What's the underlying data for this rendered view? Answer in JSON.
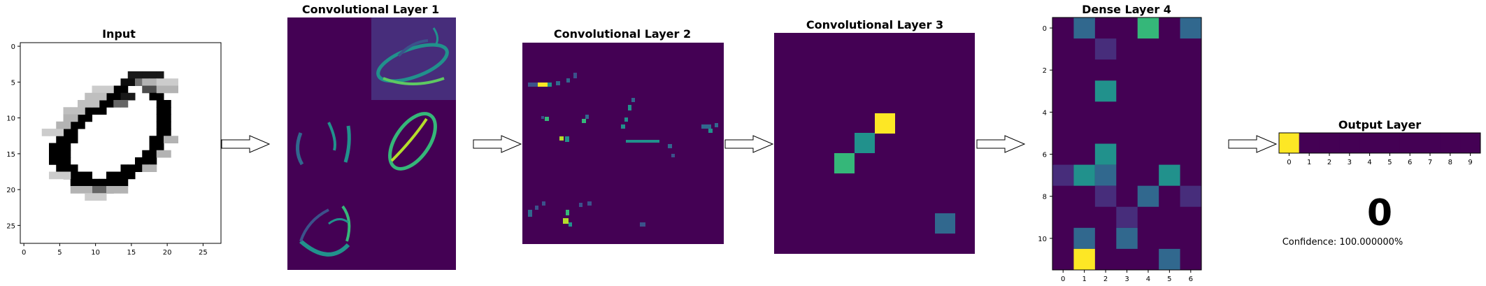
{
  "colors": {
    "purple": "#440154",
    "blue": "#31688e",
    "teal": "#21918c",
    "green": "#35b779",
    "yellow": "#fde725",
    "cool_bg": "#472d7b",
    "arrow_fill": "#ffffff",
    "arrow_stroke": "#000000"
  },
  "panels": {
    "input": {
      "title": "Input"
    },
    "conv1": {
      "title": "Convolutional Layer 1"
    },
    "conv2": {
      "title": "Convolutional Layer 2"
    },
    "conv3": {
      "title": "Convolutional Layer 3"
    },
    "dense4": {
      "title": "Dense Layer 4"
    },
    "output": {
      "title": "Output Layer",
      "prediction": "0",
      "confidence": "Confidence: 100.000000%"
    }
  },
  "chart_data": [
    {
      "type": "heatmap",
      "title": "Input",
      "xlim": [
        -0.5,
        27.5
      ],
      "ylim": [
        27.5,
        -0.5
      ],
      "xticks": [
        "0",
        "5",
        "10",
        "15",
        "20",
        "25"
      ],
      "yticks": [
        "0",
        "5",
        "10",
        "15",
        "20",
        "25"
      ],
      "colormap": "gray_r",
      "description_values": "28x28 grayscale digit image of a handwritten '0'"
    },
    {
      "type": "heatmap",
      "title": "Dense Layer 4",
      "xlim": [
        -0.5,
        6.5
      ],
      "ylim": [
        11.5,
        -0.5
      ],
      "xticks": [
        "0",
        "1",
        "2",
        "3",
        "4",
        "5",
        "6"
      ],
      "yticks": [
        "0",
        "2",
        "4",
        "6",
        "8",
        "10"
      ],
      "colormap": "viridis",
      "cells": [
        {
          "row": 0,
          "col": 1,
          "level": "blue"
        },
        {
          "row": 0,
          "col": 4,
          "level": "green"
        },
        {
          "row": 0,
          "col": 6,
          "level": "blue"
        },
        {
          "row": 1,
          "col": 2,
          "level": "cool_bg"
        },
        {
          "row": 3,
          "col": 2,
          "level": "teal"
        },
        {
          "row": 6,
          "col": 2,
          "level": "teal"
        },
        {
          "row": 7,
          "col": 0,
          "level": "cool_bg"
        },
        {
          "row": 7,
          "col": 1,
          "level": "teal"
        },
        {
          "row": 7,
          "col": 2,
          "level": "blue"
        },
        {
          "row": 7,
          "col": 5,
          "level": "teal"
        },
        {
          "row": 8,
          "col": 2,
          "level": "cool_bg"
        },
        {
          "row": 8,
          "col": 4,
          "level": "blue"
        },
        {
          "row": 8,
          "col": 6,
          "level": "cool_bg"
        },
        {
          "row": 9,
          "col": 3,
          "level": "cool_bg"
        },
        {
          "row": 10,
          "col": 1,
          "level": "blue"
        },
        {
          "row": 10,
          "col": 3,
          "level": "blue"
        },
        {
          "row": 11,
          "col": 1,
          "level": "yellow"
        },
        {
          "row": 11,
          "col": 5,
          "level": "blue"
        }
      ]
    },
    {
      "type": "heatmap",
      "title": "Output Layer",
      "categories": [
        "0",
        "1",
        "2",
        "3",
        "4",
        "5",
        "6",
        "7",
        "8",
        "9"
      ],
      "values": [
        1.0,
        0,
        0,
        0,
        0,
        0,
        0,
        0,
        0,
        0
      ],
      "colormap": "viridis"
    }
  ]
}
